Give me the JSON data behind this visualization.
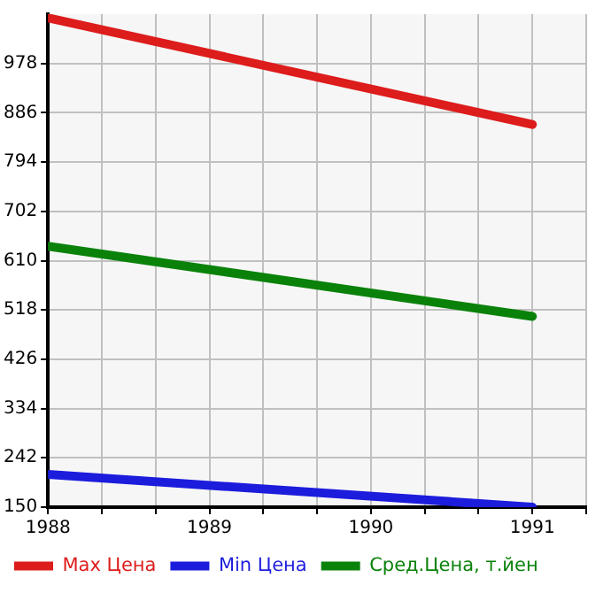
{
  "chart_data": {
    "type": "line",
    "x": [
      1988,
      1991
    ],
    "series": [
      {
        "name": "Max Цена",
        "color": "#dd1c1c",
        "values": [
          1063,
          864
        ]
      },
      {
        "name": "Min Цена",
        "color": "#1c1cdd",
        "values": [
          211,
          150
        ]
      },
      {
        "name": "Сред.Цена, т.йен",
        "color": "#0a820a",
        "values": [
          637,
          506
        ]
      }
    ],
    "xlim": [
      1988,
      1991.3333
    ],
    "xticks": [
      1988,
      {
        "value": 1988.3333,
        "label": null
      },
      {
        "value": 1988.6667,
        "label": null
      },
      1989,
      {
        "value": 1989.3333,
        "label": null
      },
      {
        "value": 1989.6667,
        "label": null
      },
      1990,
      {
        "value": 1990.3333,
        "label": null
      },
      {
        "value": 1990.6667,
        "label": null
      },
      1991,
      {
        "value": 1991.3333,
        "label": null
      }
    ],
    "ylim": [
      150,
      1070
    ],
    "yticks": [
      150,
      242,
      334,
      426,
      518,
      610,
      702,
      794,
      886,
      978
    ],
    "grid": true,
    "legend": "bottom",
    "marker": "none",
    "line_style": "solid"
  }
}
